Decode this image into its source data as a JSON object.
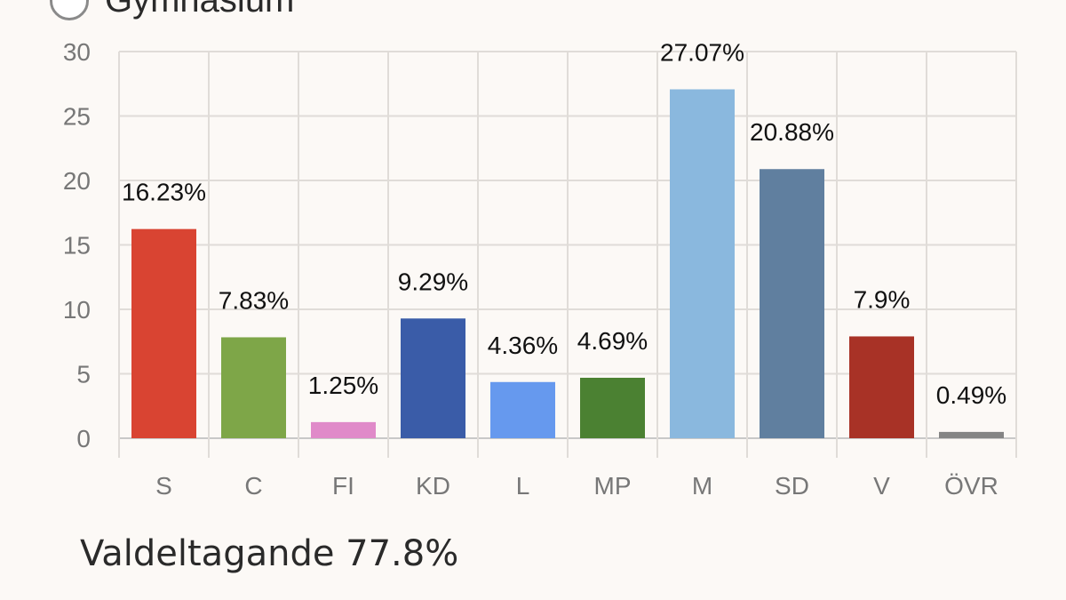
{
  "filter": {
    "option_label": "Gymnasium",
    "selected": false
  },
  "footer": {
    "turnout_label": "Valdeltagande 77.8%"
  },
  "chart_data": {
    "type": "bar",
    "title": "",
    "xlabel": "",
    "ylabel": "",
    "ylim": [
      0,
      30
    ],
    "yticks": [
      0,
      5,
      10,
      15,
      20,
      25,
      30
    ],
    "grid": true,
    "categories": [
      "S",
      "C",
      "FI",
      "KD",
      "L",
      "MP",
      "M",
      "SD",
      "V",
      "ÖVR"
    ],
    "values": [
      16.23,
      7.83,
      1.25,
      9.29,
      4.36,
      4.69,
      27.07,
      20.88,
      7.9,
      0.49
    ],
    "data_labels": [
      "16.23%",
      "7.83%",
      "1.25%",
      "9.29%",
      "4.36%",
      "4.69%",
      "27.07%",
      "20.88%",
      "7.9%",
      "0.49%"
    ],
    "colors": [
      "#d94432",
      "#7ea648",
      "#e08ac9",
      "#3a5ca8",
      "#6699ee",
      "#4b8132",
      "#8ab8de",
      "#607f9f",
      "#a83226",
      "#848484"
    ]
  }
}
